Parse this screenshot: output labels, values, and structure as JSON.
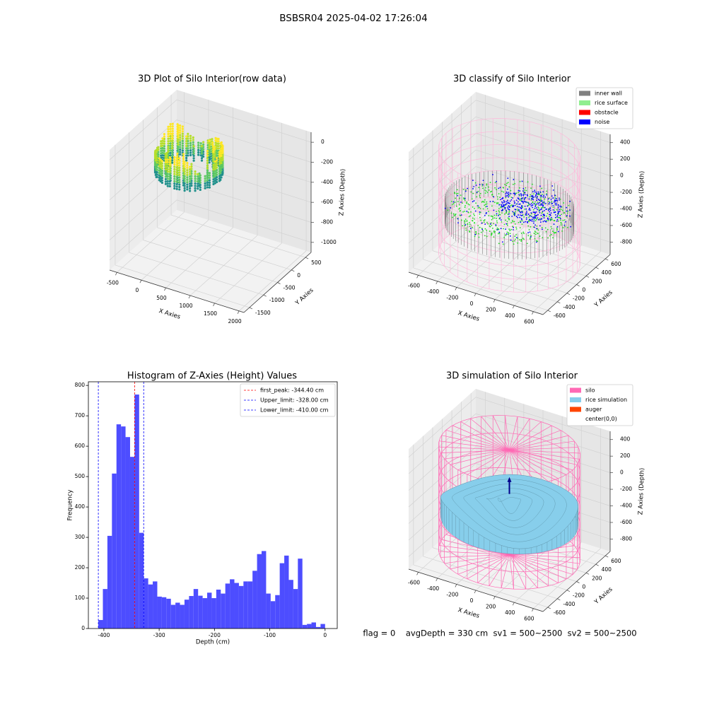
{
  "title": "BSBSR04 2025-04-02 17:26:04",
  "footer": "flag = 0    avgDepth = 330 cm  sv1 = 500~2500  sv2 = 500~2500",
  "chart_data": [
    {
      "type": "scatter3d",
      "title": "3D Plot of Silo Interior(row data)",
      "xlabel": "X Axies",
      "ylabel": "Y Axies",
      "zlabel": "Z Axies (Depth)",
      "xlim": [
        -650,
        2100
      ],
      "ylim": [
        -1700,
        700
      ],
      "zlim": [
        -1100,
        100
      ],
      "xticks": [
        -500,
        0,
        500,
        1000,
        1500,
        2000
      ],
      "yticks": [
        -1500,
        -1000,
        -500,
        0,
        500
      ],
      "zticks": [
        -1000,
        -800,
        -600,
        -400,
        -200,
        0
      ],
      "colormap": [
        "#21918c",
        "#5ec962",
        "#b5de2b",
        "#fde725"
      ]
    },
    {
      "type": "classify3d",
      "title": "3D classify of Silo Interior",
      "xlabel": "X Axies",
      "ylabel": "Y Axies",
      "zlabel": "Z Axies (Depth)",
      "xlim": [
        -700,
        700
      ],
      "ylim": [
        -700,
        700
      ],
      "zlim": [
        -950,
        500
      ],
      "xticks": [
        -600,
        -400,
        -200,
        0,
        200,
        400,
        600
      ],
      "yticks": [
        -600,
        -400,
        -200,
        0,
        200,
        400,
        600
      ],
      "zticks": [
        -800,
        -600,
        -400,
        -200,
        0,
        200,
        400
      ],
      "wireframe_color": "#ffb6d9",
      "legend": [
        {
          "name": "inner wall",
          "color": "#808080"
        },
        {
          "name": "rice surface",
          "color": "#90ee90"
        },
        {
          "name": "obstacle",
          "color": "#ff0000"
        },
        {
          "name": "noise",
          "color": "#0000ff"
        }
      ]
    },
    {
      "type": "histogram",
      "title": "Histogram of Z-Axies (Height) Values",
      "xlabel": "Depth (cm)",
      "ylabel": "Frequency",
      "color": "#4d4dff",
      "xlim": [
        -428,
        22
      ],
      "ylim": [
        0,
        812
      ],
      "xticks": [
        -400,
        -300,
        -200,
        -100,
        0
      ],
      "yticks": [
        0,
        100,
        200,
        300,
        400,
        500,
        600,
        700,
        800
      ],
      "bins": [
        -410,
        -401.8,
        -393.6,
        -385.4,
        -377.2,
        -369,
        -360.8,
        -352.6,
        -344.4,
        -336.2,
        -328,
        -319.8,
        -311.6,
        -303.4,
        -295.2,
        -287,
        -278.8,
        -270.6,
        -262.4,
        -254.2,
        -246,
        -237.8,
        -229.6,
        -221.4,
        -213.2,
        -205,
        -196.8,
        -188.6,
        -180.4,
        -172.2,
        -164,
        -155.8,
        -147.6,
        -139.4,
        -131.2,
        -123,
        -114.8,
        -106.6,
        -98.4,
        -90.2,
        -82,
        -73.8,
        -65.6,
        -57.4,
        -49.2,
        -41,
        -32.8,
        -24.6,
        -16.4,
        -8.2,
        0
      ],
      "values": [
        28,
        130,
        305,
        510,
        672,
        665,
        630,
        565,
        770,
        315,
        165,
        145,
        155,
        105,
        103,
        98,
        78,
        85,
        78,
        95,
        107,
        130,
        108,
        100,
        118,
        100,
        128,
        115,
        148,
        162,
        150,
        140,
        155,
        155,
        190,
        245,
        255,
        115,
        90,
        110,
        215,
        240,
        160,
        130,
        230,
        12,
        15,
        20,
        5,
        15
      ],
      "lines": [
        {
          "name": "first_peak: -344.40 cm",
          "value": -344.4,
          "color": "#ff0000"
        },
        {
          "name": "Upper_limit: -328.00 cm",
          "value": -328,
          "color": "#0000ff"
        },
        {
          "name": "Lower_limit: -410.00 cm",
          "value": -410,
          "color": "#0000ff"
        }
      ]
    },
    {
      "type": "simulation3d",
      "title": "3D simulation of Silo Interior",
      "xlabel": "X Axies",
      "ylabel": "Y Axies",
      "zlabel": "Z Axies (Depth)",
      "xlim": [
        -700,
        700
      ],
      "ylim": [
        -700,
        700
      ],
      "zlim": [
        -950,
        500
      ],
      "xticks": [
        -600,
        -400,
        -200,
        0,
        200,
        400,
        600
      ],
      "yticks": [
        -600,
        -400,
        -200,
        0,
        200,
        400,
        600
      ],
      "zticks": [
        -800,
        -600,
        -400,
        -200,
        0,
        200,
        400
      ],
      "arrow_color": "#00008b",
      "legend": [
        {
          "name": "silo",
          "color": "#ff69b4"
        },
        {
          "name": "rice simulation",
          "color": "#87ceeb"
        },
        {
          "name": "auger",
          "color": "#ff4500"
        },
        {
          "name": "center(0,0)",
          "color": "#ffffff"
        }
      ]
    }
  ]
}
